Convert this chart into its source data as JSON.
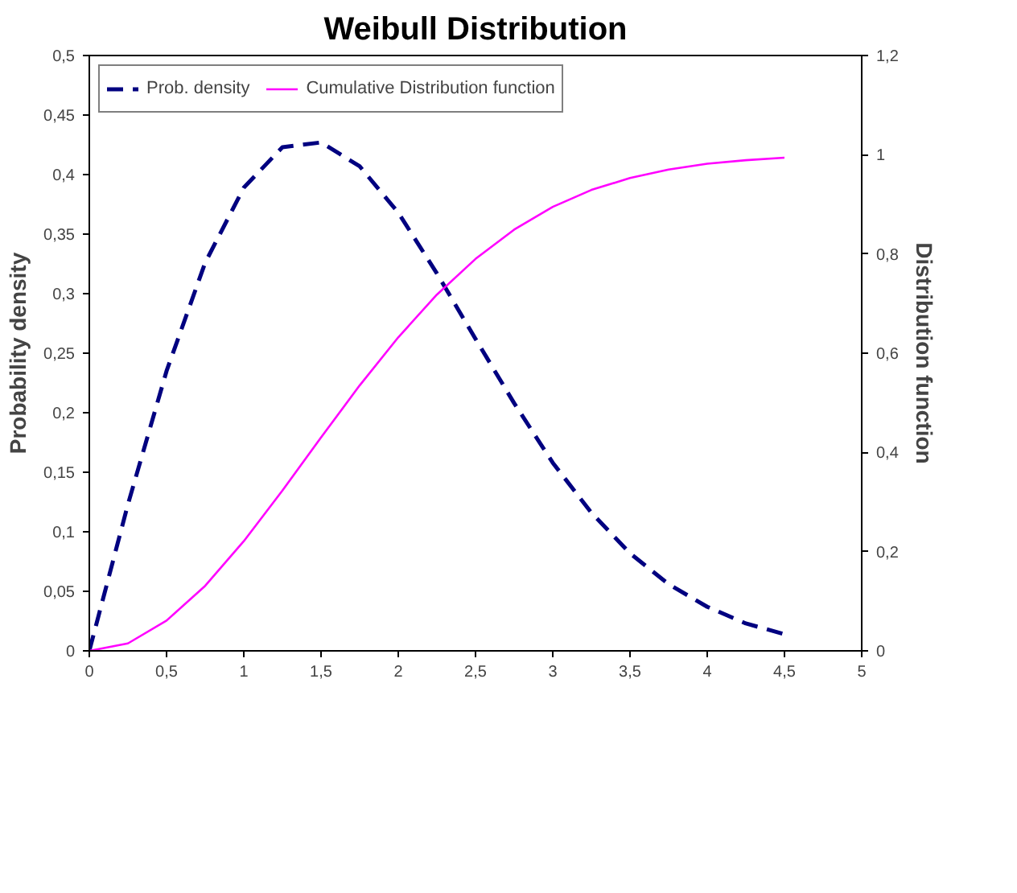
{
  "chart_data": {
    "type": "line",
    "title": "Weibull Distribution",
    "ylabel": "Probability density",
    "y2label": "Distribution function",
    "x": [
      0,
      0.25,
      0.5,
      0.75,
      1,
      1.25,
      1.5,
      1.75,
      2,
      2.25,
      2.5,
      2.75,
      3,
      3.25,
      3.5,
      3.75,
      4,
      4.25,
      4.5
    ],
    "series": [
      {
        "name": "Prob. density",
        "color": "#000080",
        "line_style": "dashed",
        "values": [
          0,
          0.123,
          0.235,
          0.326,
          0.389,
          0.423,
          0.427,
          0.407,
          0.368,
          0.317,
          0.262,
          0.208,
          0.158,
          0.116,
          0.082,
          0.056,
          0.037,
          0.023,
          0.014
        ]
      },
      {
        "name": "Cumulative Distribution function",
        "color": "#ff00ff",
        "line_style": "solid",
        "axis": "y2",
        "values": [
          0,
          0.015,
          0.061,
          0.131,
          0.221,
          0.323,
          0.43,
          0.535,
          0.632,
          0.718,
          0.79,
          0.849,
          0.895,
          0.929,
          0.953,
          0.97,
          0.982,
          0.989,
          0.994
        ]
      }
    ],
    "xlim": [
      0,
      5
    ],
    "xticks": [
      0,
      {
        "value": 0.5,
        "label": "0,5"
      },
      1,
      {
        "value": 1.5,
        "label": "1,5"
      },
      2,
      {
        "value": 2.5,
        "label": "2,5"
      },
      3,
      {
        "value": 3.5,
        "label": "3,5"
      },
      4,
      {
        "value": 4.5,
        "label": "4,5"
      },
      5
    ],
    "ylim": [
      0,
      0.5
    ],
    "yticks": [
      0,
      {
        "value": 0.05,
        "label": "0,05"
      },
      {
        "value": 0.1,
        "label": "0,1"
      },
      {
        "value": 0.15,
        "label": "0,15"
      },
      {
        "value": 0.2,
        "label": "0,2"
      },
      {
        "value": 0.25,
        "label": "0,25"
      },
      {
        "value": 0.3,
        "label": "0,3"
      },
      {
        "value": 0.35,
        "label": "0,35"
      },
      {
        "value": 0.4,
        "label": "0,4"
      },
      {
        "value": 0.45,
        "label": "0,45"
      },
      {
        "value": 0.5,
        "label": "0,5"
      }
    ],
    "y2lim": [
      0,
      1.2
    ],
    "y2ticks": [
      0,
      {
        "value": 0.2,
        "label": "0,2"
      },
      {
        "value": 0.4,
        "label": "0,4"
      },
      {
        "value": 0.6,
        "label": "0,6"
      },
      {
        "value": 0.8,
        "label": "0,8"
      },
      1,
      {
        "value": 1.2,
        "label": "1,2"
      }
    ],
    "grid": false,
    "legend": "top left"
  }
}
